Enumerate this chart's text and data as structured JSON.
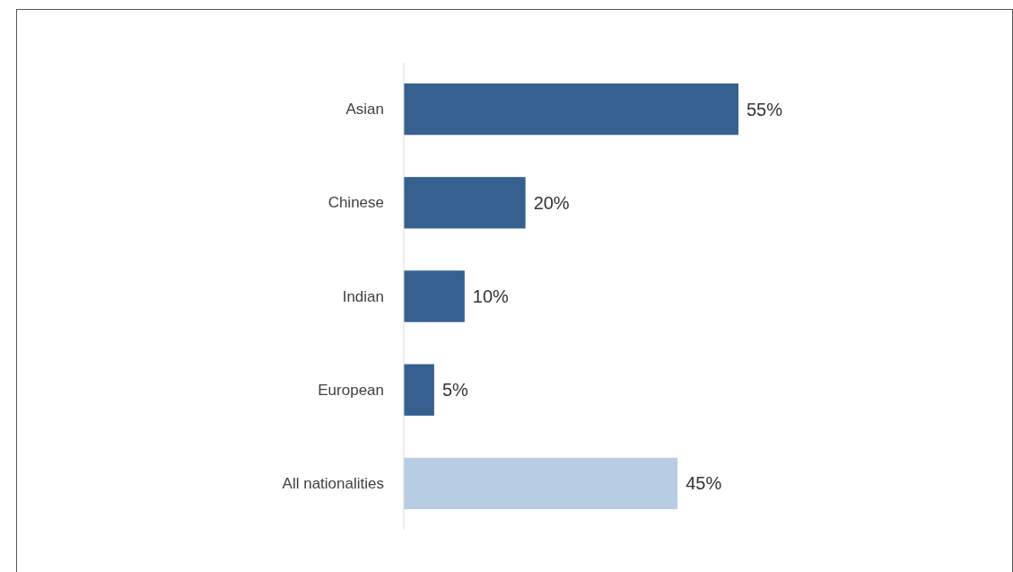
{
  "chart_data": {
    "type": "bar",
    "orientation": "horizontal",
    "categories": [
      "Asian",
      "Chinese",
      "Indian",
      "European",
      "All nationalities"
    ],
    "values": [
      55,
      20,
      10,
      5,
      45
    ],
    "colors": [
      "#35608f",
      "#35608f",
      "#35608f",
      "#35608f",
      "#b8cde4"
    ],
    "data_labels": true,
    "value_labels": [
      "55%",
      "20%",
      "10%",
      "5%",
      "45%"
    ]
  }
}
